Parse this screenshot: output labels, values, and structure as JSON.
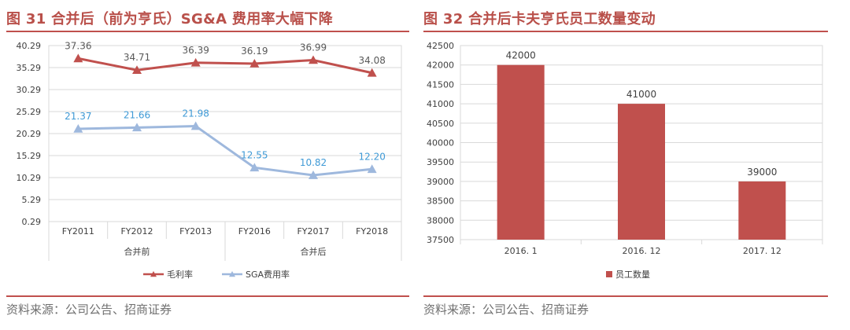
{
  "charts": [
    {
      "id": "left",
      "figure_title": "图 31 合并后（前为亨氏）SG&A 费用率大幅下降",
      "source": "资料来源：公司公告、招商证券",
      "chart_data": {
        "type": "line",
        "categories": [
          "FY2011",
          "FY2012",
          "FY2013",
          "FY2016",
          "FY2017",
          "FY2018"
        ],
        "groups": [
          {
            "label": "合并前",
            "span": [
              0,
              3
            ]
          },
          {
            "label": "合并后",
            "span": [
              3,
              6
            ]
          }
        ],
        "yticks": [
          "0.29",
          "5.29",
          "10.29",
          "15.29",
          "20.29",
          "25.29",
          "30.29",
          "35.29",
          "40.29"
        ],
        "ylim": [
          0.29,
          40.29
        ],
        "grid": "horizontal",
        "legend_position": "bottom",
        "series": [
          {
            "name": "毛利率",
            "color": "#c0504d",
            "marker": "triangle",
            "values": [
              37.36,
              34.71,
              36.39,
              36.19,
              36.99,
              34.08
            ],
            "labels": [
              "37.36",
              "34.71",
              "36.39",
              "36.19",
              "36.99",
              "34.08"
            ],
            "label_color": "#595959"
          },
          {
            "name": "SGA费用率",
            "color": "#9eb8dd",
            "marker": "triangle",
            "values": [
              21.37,
              21.66,
              21.98,
              12.55,
              10.82,
              12.2
            ],
            "labels": [
              "21.37",
              "21.66",
              "21.98",
              "12.55",
              "10.82",
              "12.20"
            ],
            "label_color": "#3f9ad6"
          }
        ]
      }
    },
    {
      "id": "right",
      "figure_title": "图 32 合并后卡夫亨氏员工数量变动",
      "source": "资料来源：公司公告、招商证券",
      "chart_data": {
        "type": "bar",
        "categories": [
          "2016. 1",
          "2016. 12",
          "2017. 12"
        ],
        "yticks": [
          "37500",
          "38000",
          "38500",
          "39000",
          "39500",
          "40000",
          "40500",
          "41000",
          "41500",
          "42000",
          "42500"
        ],
        "ylim": [
          37500,
          42500
        ],
        "grid": "horizontal",
        "legend_position": "bottom",
        "series": [
          {
            "name": "员工数量",
            "color": "#c0504d",
            "values": [
              42000,
              41000,
              39000
            ],
            "labels": [
              "42000",
              "41000",
              "39000"
            ]
          }
        ]
      }
    }
  ]
}
